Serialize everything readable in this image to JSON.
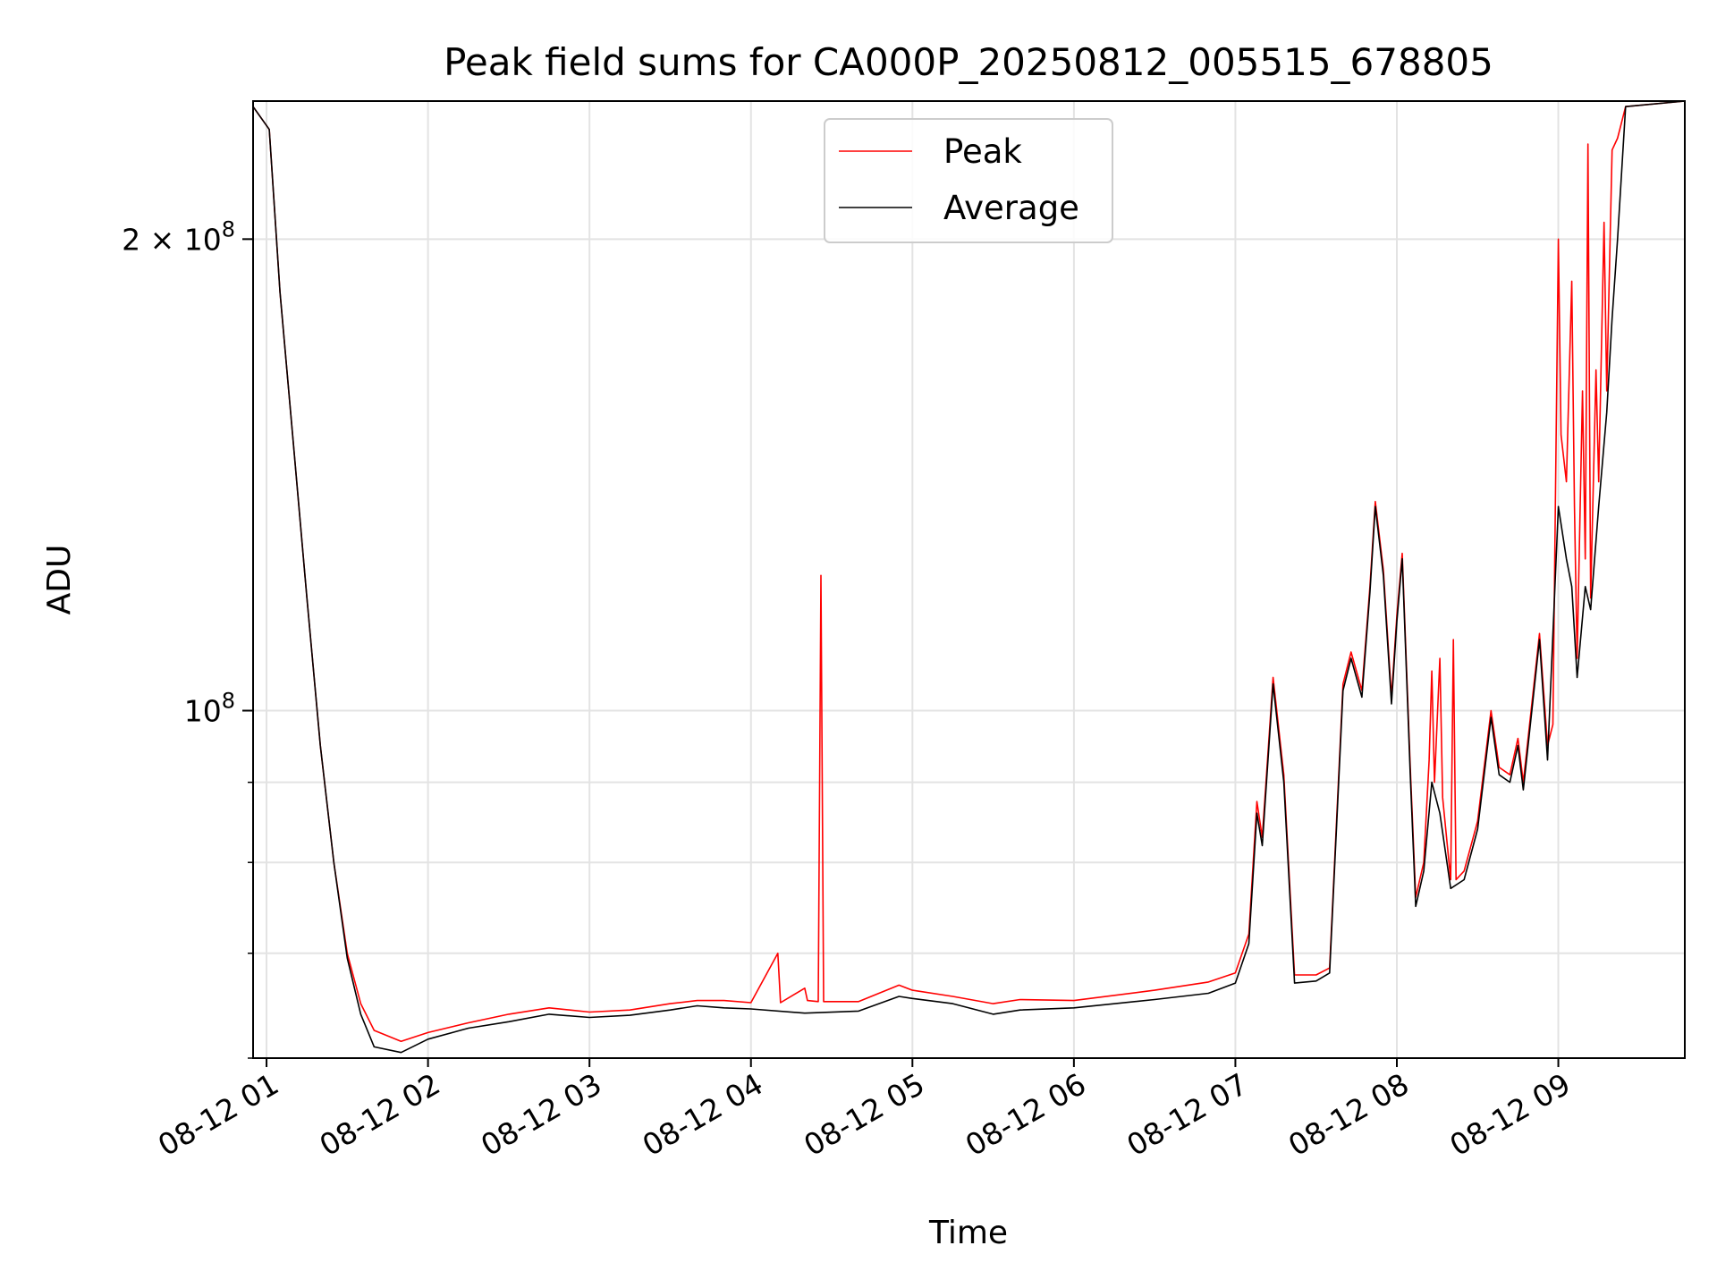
{
  "chart_data": {
    "type": "line",
    "title": "Peak field sums for CA000P_20250812_005515_678805",
    "xlabel": "Time",
    "ylabel": "ADU",
    "y_scale": "log",
    "grid": true,
    "legend_position": "top-center",
    "xlim": [
      "2025-08-12T00:55",
      "2025-08-12T09:47"
    ],
    "ylim": [
      60000000,
      245000000
    ],
    "x_ticks": [
      {
        "value": "2025-08-12T01:00",
        "label": "08-12 01"
      },
      {
        "value": "2025-08-12T02:00",
        "label": "08-12 02"
      },
      {
        "value": "2025-08-12T03:00",
        "label": "08-12 03"
      },
      {
        "value": "2025-08-12T04:00",
        "label": "08-12 04"
      },
      {
        "value": "2025-08-12T05:00",
        "label": "08-12 05"
      },
      {
        "value": "2025-08-12T06:00",
        "label": "08-12 06"
      },
      {
        "value": "2025-08-12T07:00",
        "label": "08-12 07"
      },
      {
        "value": "2025-08-12T08:00",
        "label": "08-12 08"
      },
      {
        "value": "2025-08-12T09:00",
        "label": "08-12 09"
      }
    ],
    "y_ticks_major": [
      {
        "value": 100000000,
        "base": "10",
        "exp": "8",
        "coef": ""
      },
      {
        "value": 200000000,
        "base": "10",
        "exp": "8",
        "coef": "2 × "
      }
    ],
    "y_ticks_minor": [
      60000000,
      70000000,
      80000000,
      90000000
    ],
    "series": [
      {
        "name": "Peak",
        "color": "#ff0000",
        "points": [
          [
            "2025-08-12T00:55",
            243000000
          ],
          [
            "2025-08-12T01:01",
            235000000
          ],
          [
            "2025-08-12T01:05",
            185000000
          ],
          [
            "2025-08-12T01:10",
            148000000
          ],
          [
            "2025-08-12T01:15",
            118000000
          ],
          [
            "2025-08-12T01:20",
            95000000
          ],
          [
            "2025-08-12T01:25",
            80000000
          ],
          [
            "2025-08-12T01:30",
            70000000
          ],
          [
            "2025-08-12T01:35",
            65000000
          ],
          [
            "2025-08-12T01:40",
            62500000
          ],
          [
            "2025-08-12T01:50",
            61500000
          ],
          [
            "2025-08-12T02:00",
            62300000
          ],
          [
            "2025-08-12T02:15",
            63200000
          ],
          [
            "2025-08-12T02:30",
            64000000
          ],
          [
            "2025-08-12T02:45",
            64600000
          ],
          [
            "2025-08-12T03:00",
            64200000
          ],
          [
            "2025-08-12T03:15",
            64400000
          ],
          [
            "2025-08-12T03:30",
            65000000
          ],
          [
            "2025-08-12T03:40",
            65300000
          ],
          [
            "2025-08-12T03:50",
            65300000
          ],
          [
            "2025-08-12T04:00",
            65100000
          ],
          [
            "2025-08-12T04:10",
            70000000
          ],
          [
            "2025-08-12T04:11",
            65100000
          ],
          [
            "2025-08-12T04:20",
            66500000
          ],
          [
            "2025-08-12T04:21",
            65300000
          ],
          [
            "2025-08-12T04:25",
            65200000
          ],
          [
            "2025-08-12T04:26",
            122000000
          ],
          [
            "2025-08-12T04:27",
            65200000
          ],
          [
            "2025-08-12T04:40",
            65200000
          ],
          [
            "2025-08-12T04:55",
            66800000
          ],
          [
            "2025-08-12T05:00",
            66300000
          ],
          [
            "2025-08-12T05:15",
            65700000
          ],
          [
            "2025-08-12T05:30",
            65000000
          ],
          [
            "2025-08-12T05:40",
            65400000
          ],
          [
            "2025-08-12T06:00",
            65300000
          ],
          [
            "2025-08-12T06:30",
            66300000
          ],
          [
            "2025-08-12T06:50",
            67100000
          ],
          [
            "2025-08-12T07:00",
            68000000
          ],
          [
            "2025-08-12T07:05",
            72000000
          ],
          [
            "2025-08-12T07:08",
            87500000
          ],
          [
            "2025-08-12T07:10",
            83000000
          ],
          [
            "2025-08-12T07:14",
            105000000
          ],
          [
            "2025-08-12T07:18",
            91000000
          ],
          [
            "2025-08-12T07:22",
            67800000
          ],
          [
            "2025-08-12T07:30",
            67800000
          ],
          [
            "2025-08-12T07:35",
            68500000
          ],
          [
            "2025-08-12T07:40",
            104000000
          ],
          [
            "2025-08-12T07:43",
            109000000
          ],
          [
            "2025-08-12T07:47",
            103000000
          ],
          [
            "2025-08-12T07:50",
            120000000
          ],
          [
            "2025-08-12T07:52",
            136000000
          ],
          [
            "2025-08-12T07:55",
            123000000
          ],
          [
            "2025-08-12T07:58",
            102000000
          ],
          [
            "2025-08-12T08:00",
            115000000
          ],
          [
            "2025-08-12T08:02",
            126000000
          ],
          [
            "2025-08-12T08:05",
            92000000
          ],
          [
            "2025-08-12T08:07",
            76000000
          ],
          [
            "2025-08-12T08:10",
            80000000
          ],
          [
            "2025-08-12T08:12",
            93000000
          ],
          [
            "2025-08-12T08:13",
            106000000
          ],
          [
            "2025-08-12T08:14",
            90000000
          ],
          [
            "2025-08-12T08:16",
            108000000
          ],
          [
            "2025-08-12T08:17",
            88000000
          ],
          [
            "2025-08-12T08:20",
            78000000
          ],
          [
            "2025-08-12T08:21",
            111000000
          ],
          [
            "2025-08-12T08:22",
            78000000
          ],
          [
            "2025-08-12T08:25",
            79000000
          ],
          [
            "2025-08-12T08:30",
            85000000
          ],
          [
            "2025-08-12T08:35",
            100000000
          ],
          [
            "2025-08-12T08:38",
            92000000
          ],
          [
            "2025-08-12T08:42",
            91000000
          ],
          [
            "2025-08-12T08:45",
            96000000
          ],
          [
            "2025-08-12T08:47",
            90000000
          ],
          [
            "2025-08-12T08:53",
            112000000
          ],
          [
            "2025-08-12T08:56",
            95000000
          ],
          [
            "2025-08-12T08:58",
            98000000
          ],
          [
            "2025-08-12T09:00",
            200000000
          ],
          [
            "2025-08-12T09:01",
            150000000
          ],
          [
            "2025-08-12T09:03",
            140000000
          ],
          [
            "2025-08-12T09:05",
            188000000
          ],
          [
            "2025-08-12T09:06",
            135000000
          ],
          [
            "2025-08-12T09:07",
            108000000
          ],
          [
            "2025-08-12T09:09",
            160000000
          ],
          [
            "2025-08-12T09:10",
            125000000
          ],
          [
            "2025-08-12T09:11",
            230000000
          ],
          [
            "2025-08-12T09:12",
            118000000
          ],
          [
            "2025-08-12T09:14",
            165000000
          ],
          [
            "2025-08-12T09:15",
            140000000
          ],
          [
            "2025-08-12T09:17",
            205000000
          ],
          [
            "2025-08-12T09:18",
            160000000
          ],
          [
            "2025-08-12T09:20",
            228000000
          ],
          [
            "2025-08-12T09:22",
            232000000
          ],
          [
            "2025-08-12T09:25",
            243000000
          ],
          [
            "2025-08-12T09:47",
            245000000
          ]
        ]
      },
      {
        "name": "Average",
        "color": "#000000",
        "points": [
          [
            "2025-08-12T00:55",
            243000000
          ],
          [
            "2025-08-12T01:01",
            235000000
          ],
          [
            "2025-08-12T01:05",
            185000000
          ],
          [
            "2025-08-12T01:10",
            148000000
          ],
          [
            "2025-08-12T01:15",
            118000000
          ],
          [
            "2025-08-12T01:20",
            95000000
          ],
          [
            "2025-08-12T01:25",
            80000000
          ],
          [
            "2025-08-12T01:30",
            69500000
          ],
          [
            "2025-08-12T01:35",
            64000000
          ],
          [
            "2025-08-12T01:40",
            61000000
          ],
          [
            "2025-08-12T01:50",
            60500000
          ],
          [
            "2025-08-12T02:00",
            61700000
          ],
          [
            "2025-08-12T02:15",
            62700000
          ],
          [
            "2025-08-12T02:30",
            63300000
          ],
          [
            "2025-08-12T02:45",
            64000000
          ],
          [
            "2025-08-12T03:00",
            63700000
          ],
          [
            "2025-08-12T03:15",
            63900000
          ],
          [
            "2025-08-12T03:30",
            64400000
          ],
          [
            "2025-08-12T03:40",
            64800000
          ],
          [
            "2025-08-12T03:50",
            64600000
          ],
          [
            "2025-08-12T04:00",
            64500000
          ],
          [
            "2025-08-12T04:20",
            64100000
          ],
          [
            "2025-08-12T04:40",
            64300000
          ],
          [
            "2025-08-12T04:55",
            65700000
          ],
          [
            "2025-08-12T05:00",
            65500000
          ],
          [
            "2025-08-12T05:15",
            65000000
          ],
          [
            "2025-08-12T05:30",
            64000000
          ],
          [
            "2025-08-12T05:40",
            64400000
          ],
          [
            "2025-08-12T06:00",
            64600000
          ],
          [
            "2025-08-12T06:30",
            65400000
          ],
          [
            "2025-08-12T06:50",
            66000000
          ],
          [
            "2025-08-12T07:00",
            67000000
          ],
          [
            "2025-08-12T07:05",
            71000000
          ],
          [
            "2025-08-12T07:08",
            86000000
          ],
          [
            "2025-08-12T07:10",
            82000000
          ],
          [
            "2025-08-12T07:14",
            104000000
          ],
          [
            "2025-08-12T07:18",
            90000000
          ],
          [
            "2025-08-12T07:22",
            67000000
          ],
          [
            "2025-08-12T07:30",
            67200000
          ],
          [
            "2025-08-12T07:35",
            68000000
          ],
          [
            "2025-08-12T07:40",
            103000000
          ],
          [
            "2025-08-12T07:43",
            108000000
          ],
          [
            "2025-08-12T07:47",
            102000000
          ],
          [
            "2025-08-12T07:50",
            119000000
          ],
          [
            "2025-08-12T07:52",
            135000000
          ],
          [
            "2025-08-12T07:55",
            122000000
          ],
          [
            "2025-08-12T07:58",
            101000000
          ],
          [
            "2025-08-12T08:00",
            114000000
          ],
          [
            "2025-08-12T08:02",
            125000000
          ],
          [
            "2025-08-12T08:05",
            91000000
          ],
          [
            "2025-08-12T08:07",
            75000000
          ],
          [
            "2025-08-12T08:10",
            79000000
          ],
          [
            "2025-08-12T08:13",
            90000000
          ],
          [
            "2025-08-12T08:16",
            86000000
          ],
          [
            "2025-08-12T08:20",
            77000000
          ],
          [
            "2025-08-12T08:25",
            78000000
          ],
          [
            "2025-08-12T08:30",
            84000000
          ],
          [
            "2025-08-12T08:35",
            99000000
          ],
          [
            "2025-08-12T08:38",
            91000000
          ],
          [
            "2025-08-12T08:42",
            90000000
          ],
          [
            "2025-08-12T08:45",
            95000000
          ],
          [
            "2025-08-12T08:47",
            89000000
          ],
          [
            "2025-08-12T08:53",
            111000000
          ],
          [
            "2025-08-12T08:56",
            93000000
          ],
          [
            "2025-08-12T09:00",
            135000000
          ],
          [
            "2025-08-12T09:03",
            125000000
          ],
          [
            "2025-08-12T09:05",
            120000000
          ],
          [
            "2025-08-12T09:07",
            105000000
          ],
          [
            "2025-08-12T09:10",
            120000000
          ],
          [
            "2025-08-12T09:12",
            116000000
          ],
          [
            "2025-08-12T09:15",
            135000000
          ],
          [
            "2025-08-12T09:18",
            155000000
          ],
          [
            "2025-08-12T09:20",
            178000000
          ],
          [
            "2025-08-12T09:22",
            200000000
          ],
          [
            "2025-08-12T09:25",
            243000000
          ],
          [
            "2025-08-12T09:47",
            245000000
          ]
        ]
      }
    ]
  }
}
